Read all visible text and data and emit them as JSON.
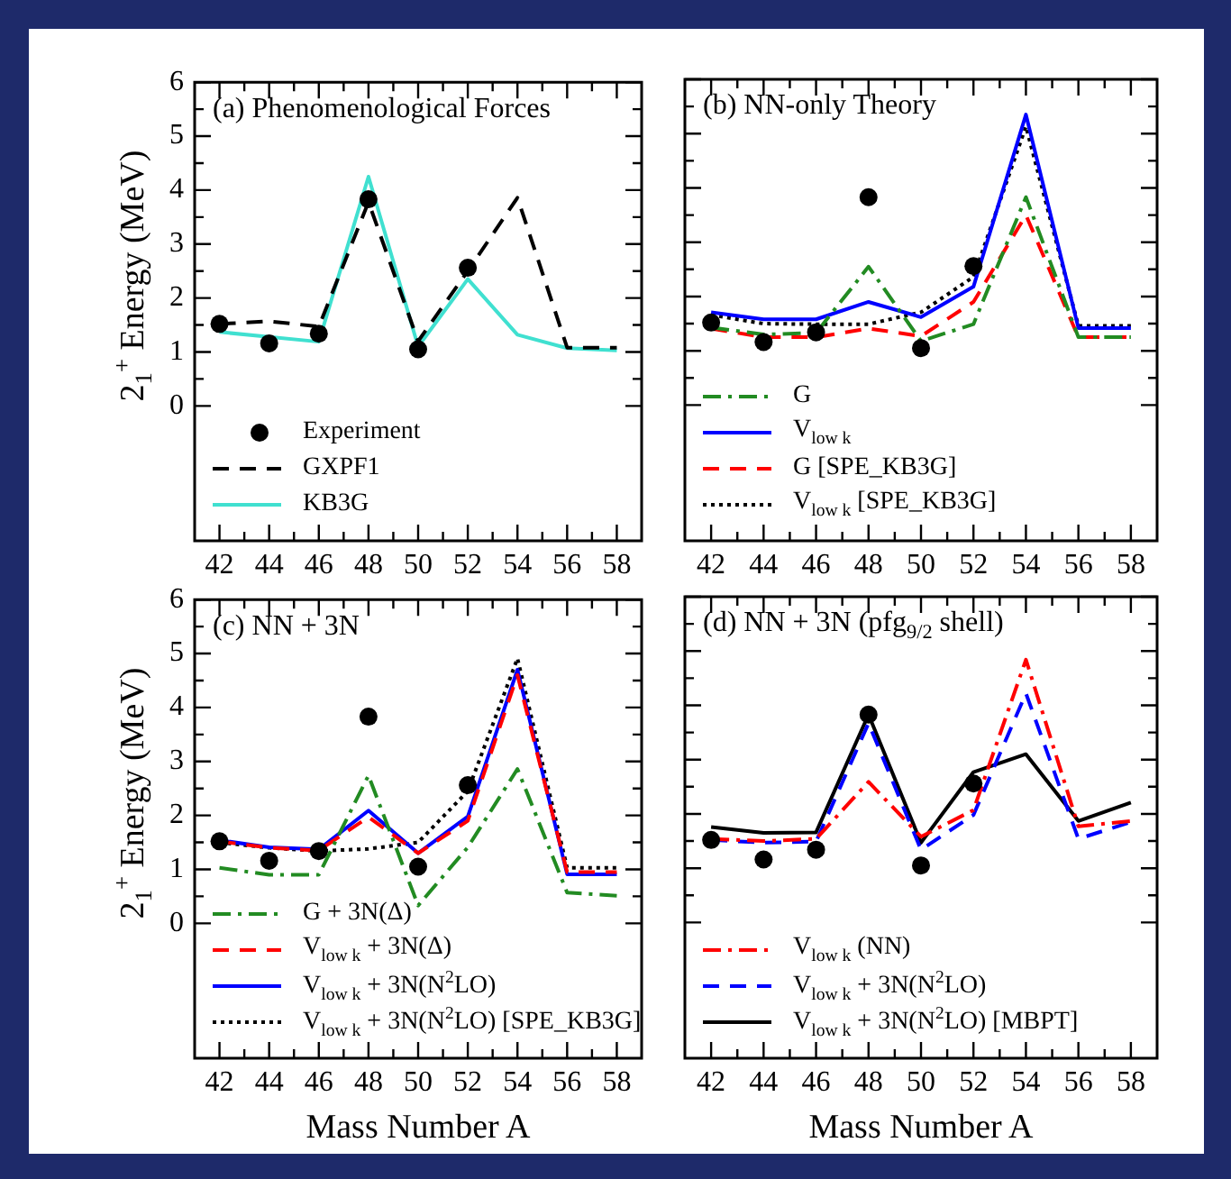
{
  "chart_data": [
    {
      "type": "line",
      "title": "(a) Phenomenological Forces",
      "ylabel": "2$_{1}$$^{+}$ Energy (MeV)",
      "x": [
        42,
        44,
        46,
        48,
        50,
        52,
        54,
        56,
        58
      ],
      "xlim": [
        41,
        59
      ],
      "ylim": [
        -2.5,
        6
      ],
      "xticks": [
        42,
        44,
        46,
        48,
        50,
        52,
        54,
        56,
        58
      ],
      "yticks": [
        0,
        1,
        2,
        3,
        4,
        5,
        6
      ],
      "grid": false,
      "legend": "bottom left",
      "marker": "none",
      "series": [
        {
          "name": "Experiment",
          "type": "scatter",
          "marker": "circle",
          "color": "#000000",
          "values": [
            1.52,
            1.16,
            1.34,
            3.83,
            1.05,
            2.56,
            null,
            null,
            null
          ]
        },
        {
          "name": "GXPF1",
          "color": "#000000",
          "line_style": "dashed",
          "values": [
            1.52,
            1.57,
            1.47,
            3.78,
            1.2,
            2.5,
            3.86,
            1.08,
            1.08
          ]
        },
        {
          "name": "KB3G",
          "color": "#40e0d0",
          "line_style": "solid",
          "values": [
            1.37,
            1.28,
            1.19,
            4.25,
            1.1,
            2.35,
            1.32,
            1.07,
            1.03
          ]
        }
      ]
    },
    {
      "type": "line",
      "title": "(b) NN-only Theory",
      "x": [
        42,
        44,
        46,
        48,
        50,
        52,
        54,
        56,
        58
      ],
      "xlim": [
        41,
        59
      ],
      "ylim": [
        -2.5,
        6
      ],
      "xticks": [
        42,
        44,
        46,
        48,
        50,
        52,
        54,
        56,
        58
      ],
      "yticks": [
        0,
        1,
        2,
        3,
        4,
        5,
        6
      ],
      "grid": false,
      "legend": "bottom left",
      "marker": "none",
      "tick_labels": "x",
      "series": [
        {
          "type": "scatter",
          "marker": "circle",
          "color": "#000000",
          "values": [
            1.52,
            1.16,
            1.34,
            3.83,
            1.05,
            2.56,
            null,
            null,
            null
          ]
        },
        {
          "name": "G",
          "color": "#228b22",
          "line_style": "dashdot",
          "values": [
            1.43,
            1.3,
            1.33,
            2.55,
            1.18,
            1.49,
            3.83,
            1.25,
            1.25
          ]
        },
        {
          "name": "V$_{low k}$",
          "color": "#0000ff",
          "line_style": "solid",
          "values": [
            1.71,
            1.58,
            1.58,
            1.9,
            1.62,
            2.18,
            5.35,
            1.42,
            1.42
          ]
        },
        {
          "name": "G [SPE_KB3G]",
          "color": "#ff0000",
          "line_style": "dashed",
          "values": [
            1.41,
            1.25,
            1.25,
            1.41,
            1.27,
            1.9,
            3.5,
            1.25,
            1.25
          ]
        },
        {
          "name": "V$_{low k}$ [SPE_KB3G]",
          "color": "#000000",
          "line_style": "dotted",
          "values": [
            1.66,
            1.5,
            1.49,
            1.49,
            1.71,
            2.36,
            5.13,
            1.46,
            1.46
          ]
        }
      ]
    },
    {
      "type": "line",
      "title": "(c) NN + 3N",
      "xlabel": "Mass Number A",
      "ylabel": "2$_{1}$$^{+}$ Energy (MeV)",
      "x": [
        42,
        44,
        46,
        48,
        50,
        52,
        54,
        56,
        58
      ],
      "xlim": [
        41,
        59
      ],
      "ylim": [
        -2.5,
        6
      ],
      "xticks": [
        42,
        44,
        46,
        48,
        50,
        52,
        54,
        56,
        58
      ],
      "yticks": [
        0,
        1,
        2,
        3,
        4,
        5,
        6
      ],
      "grid": false,
      "legend": "bottom left",
      "marker": "none",
      "series": [
        {
          "type": "scatter",
          "marker": "circle",
          "color": "#000000",
          "values": [
            1.52,
            1.16,
            1.34,
            3.83,
            1.05,
            2.56,
            null,
            null,
            null
          ]
        },
        {
          "name": "G + 3N(Δ)",
          "color": "#228b22",
          "line_style": "dashdot",
          "values": [
            1.03,
            0.9,
            0.9,
            2.74,
            0.33,
            1.41,
            2.86,
            0.57,
            0.51
          ]
        },
        {
          "name": "V$_{low k}$ + 3N(Δ)",
          "color": "#ff0000",
          "line_style": "dashed",
          "values": [
            1.52,
            1.4,
            1.35,
            1.97,
            1.3,
            1.9,
            4.6,
            0.95,
            0.95
          ]
        },
        {
          "name": "V$_{low k}$ + 3N(N$^{2}$LO)",
          "color": "#0000ff",
          "line_style": "solid",
          "values": [
            1.54,
            1.41,
            1.37,
            2.09,
            1.3,
            1.98,
            4.7,
            0.91,
            0.91
          ]
        },
        {
          "name": "V$_{low k}$ + 3N(N$^{2}$LO) [SPE_KB3G]",
          "color": "#000000",
          "line_style": "dotted",
          "values": [
            1.5,
            1.4,
            1.34,
            1.38,
            1.5,
            2.45,
            4.91,
            1.03,
            1.03
          ]
        }
      ]
    },
    {
      "type": "line",
      "title": "(d) NN + 3N (pfg$_{9/2}$ shell)",
      "xlabel": "Mass Number A",
      "x": [
        42,
        44,
        46,
        48,
        50,
        52,
        54,
        56,
        58
      ],
      "xlim": [
        41,
        59
      ],
      "ylim": [
        -2.5,
        6
      ],
      "xticks": [
        42,
        44,
        46,
        48,
        50,
        52,
        54,
        56,
        58
      ],
      "yticks": [
        0,
        1,
        2,
        3,
        4,
        5,
        6
      ],
      "grid": false,
      "legend": "bottom left",
      "marker": "none",
      "tick_labels": "x",
      "series": [
        {
          "type": "scatter",
          "marker": "circle",
          "color": "#000000",
          "values": [
            1.52,
            1.16,
            1.34,
            3.83,
            1.05,
            2.56,
            null,
            null,
            null
          ]
        },
        {
          "name": "V$_{low k}$ (NN)",
          "color": "#ff0000",
          "line_style": "dashdot",
          "values": [
            1.54,
            1.5,
            1.54,
            2.59,
            1.58,
            2.07,
            4.84,
            1.77,
            1.87
          ]
        },
        {
          "name": "V$_{low k}$ + 3N(N$^{2}$LO)",
          "color": "#0000ff",
          "line_style": "dashed",
          "values": [
            1.52,
            1.47,
            1.49,
            3.67,
            1.34,
            1.98,
            4.22,
            1.54,
            1.85
          ]
        },
        {
          "name": "V$_{low k}$ + 3N(N$^{2}$LO) [MBPT]",
          "color": "#000000",
          "line_style": "solid",
          "values": [
            1.76,
            1.65,
            1.66,
            3.83,
            1.47,
            2.77,
            3.1,
            1.87,
            2.21
          ]
        }
      ]
    }
  ]
}
